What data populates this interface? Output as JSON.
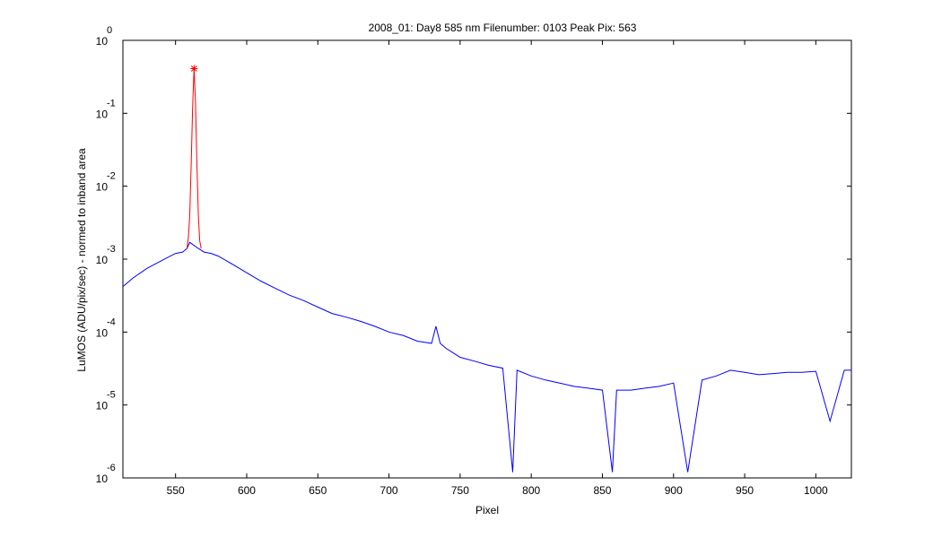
{
  "colors": {
    "background": "#ffffff",
    "axes": "#000000",
    "spectrum": "#0000ff",
    "peak_region": "#ff0000",
    "peak_marker": "#ff0000"
  },
  "chart_data": {
    "type": "line",
    "title": "2008_01: Day8  585 nm  Filenumber: 0103 Peak Pix: 563",
    "xlabel": "Pixel",
    "ylabel": "LuMOS (ADU/pix/sec) - normed to inband area",
    "xlim": [
      513,
      1025
    ],
    "ylim": [
      1e-06,
      1
    ],
    "yscale": "log",
    "grid": false,
    "x_ticks": [
      550,
      600,
      650,
      700,
      750,
      800,
      850,
      900,
      950,
      1000
    ],
    "x_tick_labels": [
      "550",
      "600",
      "650",
      "700",
      "750",
      "800",
      "850",
      "900",
      "950",
      "1000"
    ],
    "y_ticks": [
      {
        "value": 1,
        "base": "10",
        "exp": "0"
      },
      {
        "value": 0.1,
        "base": "10",
        "exp": "-1"
      },
      {
        "value": 0.01,
        "base": "10",
        "exp": "-2"
      },
      {
        "value": 0.001,
        "base": "10",
        "exp": "-3"
      },
      {
        "value": 0.0001,
        "base": "10",
        "exp": "-4"
      },
      {
        "value": 1e-05,
        "base": "10",
        "exp": "-5"
      },
      {
        "value": 1e-06,
        "base": "10",
        "exp": "-6"
      }
    ],
    "peak": {
      "x": 563,
      "y": 0.41
    },
    "series": [
      {
        "color": "#0000ff",
        "x": [
          513,
          520,
          530,
          540,
          550,
          555,
          558,
          560,
          566,
          570,
          575,
          580,
          590,
          600,
          610,
          620,
          630,
          640,
          650,
          660,
          670,
          680,
          690,
          700,
          710,
          720,
          730,
          733,
          736,
          740,
          750,
          760,
          770,
          780,
          787,
          790,
          800,
          810,
          820,
          830,
          840,
          850,
          857,
          860,
          870,
          880,
          890,
          900,
          910,
          920,
          930,
          940,
          950,
          960,
          970,
          980,
          990,
          1000,
          1010,
          1020,
          1025
        ],
        "y": [
          0.00042,
          0.00055,
          0.00075,
          0.00095,
          0.0012,
          0.00125,
          0.0014,
          0.0017,
          0.0014,
          0.00125,
          0.0012,
          0.0011,
          0.00085,
          0.00065,
          0.0005,
          0.0004,
          0.00032,
          0.00027,
          0.00022,
          0.00018,
          0.00016,
          0.00014,
          0.00012,
          0.0001,
          9e-05,
          7.5e-05,
          7e-05,
          0.00012,
          7e-05,
          6e-05,
          4.5e-05,
          4e-05,
          3.5e-05,
          3.2e-05,
          1.2e-06,
          3e-05,
          2.5e-05,
          2.2e-05,
          2e-05,
          1.8e-05,
          1.7e-05,
          1.6e-05,
          1.2e-06,
          1.6e-05,
          1.6e-05,
          1.7e-05,
          1.8e-05,
          2e-05,
          1.2e-06,
          2.2e-05,
          2.5e-05,
          3e-05,
          2.8e-05,
          2.6e-05,
          2.7e-05,
          2.8e-05,
          2.8e-05,
          2.9e-05,
          6e-06,
          3e-05,
          3e-05
        ]
      },
      {
        "color": "#ff0000",
        "x": [
          558,
          559,
          560,
          561,
          562,
          563,
          564,
          565,
          566,
          567,
          568
        ],
        "y": [
          0.0014,
          0.002,
          0.004,
          0.02,
          0.12,
          0.41,
          0.14,
          0.02,
          0.004,
          0.0018,
          0.0014
        ]
      }
    ]
  }
}
